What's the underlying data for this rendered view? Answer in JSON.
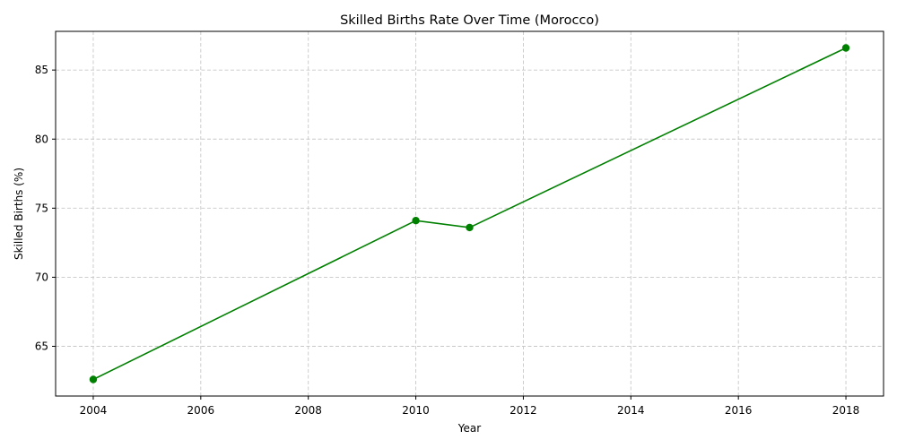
{
  "chart_data": {
    "type": "line",
    "title": "Skilled Births Rate Over Time (Morocco)",
    "xlabel": "Year",
    "ylabel": "Skilled Births (%)",
    "x": [
      2004,
      2010,
      2011,
      2018
    ],
    "series": [
      {
        "values": [
          62.6,
          74.1,
          73.6,
          86.6
        ]
      }
    ],
    "xlim": [
      2003.3,
      2018.7
    ],
    "ylim": [
      61.4,
      87.8
    ],
    "xticks": [
      2004,
      2006,
      2008,
      2010,
      2012,
      2014,
      2016,
      2018
    ],
    "yticks": [
      65,
      70,
      75,
      80,
      85
    ],
    "grid": true,
    "color": "#008000",
    "marker": "circle"
  }
}
